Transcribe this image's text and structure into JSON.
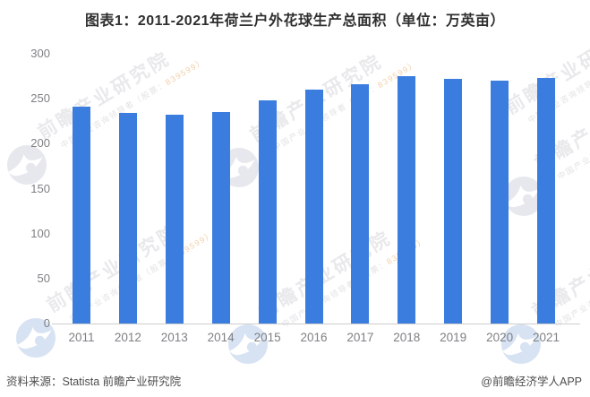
{
  "title": "图表1：2011-2021年荷兰户外花球生产总面积（单位：万英亩）",
  "footer": {
    "source": "资料来源：Statista 前瞻产业研究院",
    "credit": "@前瞻经济学人APP"
  },
  "watermark": {
    "brand": "前瞻产业研究院",
    "tagline_prefix": "中国产业咨询领导者（股票：",
    "tagline_stock": "839599",
    "tagline_suffix": "）",
    "logo_name": "qianzhan-swirl-logo"
  },
  "colors": {
    "bar": "#3A7DDE",
    "axis_line": "#cdcdd0",
    "tick_label": "#7f8084",
    "title_text": "#2f2f2f",
    "footer_text": "#4d4d4d",
    "watermark_gray": "#e9e9ec",
    "watermark_logo_gray": "#e6e8ee",
    "watermark_logo_blue": "#d7e2f3",
    "watermark_stock_orange": "#f2cfa8"
  },
  "chart_data": {
    "type": "bar",
    "title": "图表1：2011-2021年荷兰户外花球生产总面积（单位：万英亩）",
    "series_name": "荷兰户外花球生产总面积",
    "unit": "万英亩",
    "categories": [
      "2011",
      "2012",
      "2013",
      "2014",
      "2015",
      "2016",
      "2017",
      "2018",
      "2019",
      "2020",
      "2021"
    ],
    "values": [
      241,
      234,
      232,
      235,
      248,
      260,
      266,
      275,
      272,
      270,
      273
    ],
    "xlabel": "",
    "ylabel": "",
    "ylim": [
      0,
      300
    ],
    "yticks": [
      0,
      50,
      100,
      150,
      200,
      250,
      300
    ],
    "grid": false,
    "legend_position": "none"
  }
}
